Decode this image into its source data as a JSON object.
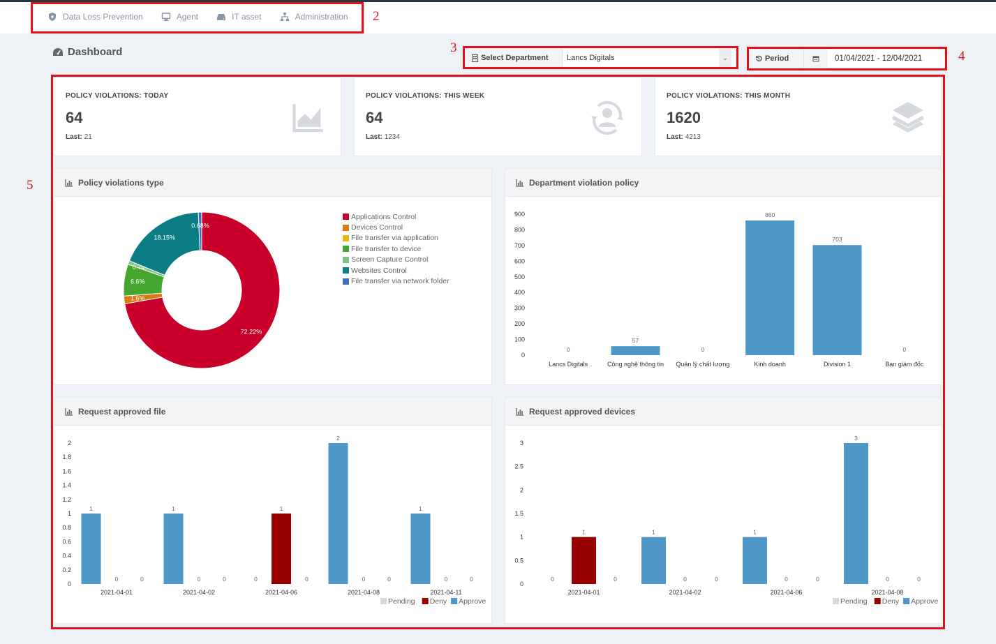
{
  "nav": [
    {
      "label": "Data Loss Prevention",
      "icon": "shield-icon"
    },
    {
      "label": "Agent",
      "icon": "monitor-icon"
    },
    {
      "label": "IT asset",
      "icon": "hdd-icon"
    },
    {
      "label": "Administration",
      "icon": "sitemap-icon"
    }
  ],
  "annotations": [
    "2",
    "3",
    "4",
    "5"
  ],
  "page": {
    "title": "Dashboard",
    "icon": "dashboard-icon"
  },
  "filters": {
    "department_label": "Select Department",
    "department_value": "Lancs Digitals",
    "period_label": "Period",
    "period_value": "01/04/2021 - 12/04/2021"
  },
  "stats": [
    {
      "title": "POLICY VIOLATIONS: TODAY",
      "value": "64",
      "last_label": "Last:",
      "last_value": "21",
      "icon": "line-chart-icon"
    },
    {
      "title": "POLICY VIOLATIONS: THIS WEEK",
      "value": "64",
      "last_label": "Last:",
      "last_value": "1234",
      "icon": "user-refresh-icon"
    },
    {
      "title": "POLICY VIOLATIONS: THIS MONTH",
      "value": "1620",
      "last_label": "Last:",
      "last_value": "4213",
      "icon": "layers-icon"
    }
  ],
  "panels": {
    "violations_type": "Policy violations type",
    "department": "Department violation policy",
    "approved_file": "Request approved file",
    "approved_devices": "Request approved devices"
  },
  "colors": {
    "accent_red": "#e0131b",
    "bar_blue": "#4f97c6",
    "deny_red": "#990000",
    "pending_grey": "#d7d7d7"
  },
  "chart_data": [
    {
      "type": "pie",
      "donut": true,
      "title": "Policy violations type",
      "legend_position": "right",
      "series": [
        {
          "name": "Applications Control",
          "percent": 72.22,
          "label": "72.22%",
          "color": "#c8002a"
        },
        {
          "name": "Devices Control",
          "percent": 1.6,
          "label": "1.6%",
          "color": "#d97b12"
        },
        {
          "name": "File transfer via application",
          "percent": 0,
          "label": "",
          "color": "#f0b60f"
        },
        {
          "name": "File transfer to device",
          "percent": 6.6,
          "label": "6.6%",
          "color": "#45a62f"
        },
        {
          "name": "Screen Capture Control",
          "percent": 0.74,
          "label": "0.74%",
          "color": "#7cc47f"
        },
        {
          "name": "Websites Control",
          "percent": 18.15,
          "label": "18.15%",
          "color": "#0b7d84"
        },
        {
          "name": "File transfer via network folder",
          "percent": 0.68,
          "label": "0.68%",
          "color": "#3c6bc8"
        }
      ]
    },
    {
      "type": "bar",
      "title": "Department violation policy",
      "categories": [
        "Lancs Digitals",
        "Công nghệ thông tin",
        "Quản lý chất lượng",
        "Kinh doanh",
        "Division 1",
        "Ban giám đốc"
      ],
      "values": [
        0,
        57,
        0,
        860,
        703,
        0
      ],
      "ylim": [
        0,
        900
      ],
      "yticks": [
        0,
        100,
        200,
        300,
        400,
        500,
        600,
        700,
        800,
        900
      ],
      "color": "#4f97c6"
    },
    {
      "type": "bar",
      "title": "Request approved file",
      "categories": [
        "2021-04-01",
        "2021-04-02",
        "2021-04-06",
        "2021-04-08",
        "2021-04-11"
      ],
      "ylim": [
        0,
        2
      ],
      "yticks": [
        "0",
        "0.2",
        "0.4",
        "0.6",
        "0.8",
        "1",
        "1.2",
        "1.4",
        "1.6",
        "1.8",
        "2"
      ],
      "legend_position": "bottom-right",
      "series": [
        {
          "name": "Pending",
          "values": [
            1,
            1,
            0,
            2,
            1
          ],
          "color": "#d7d7d7"
        },
        {
          "name": "Deny",
          "values": [
            0,
            0,
            1,
            0,
            0
          ],
          "color": "#990000"
        },
        {
          "name": "Approve",
          "values": [
            0,
            0,
            0,
            0,
            0
          ],
          "color": "#4f97c6"
        }
      ],
      "bar_colors": [
        [
          "#4f97c6",
          "#4f97c6",
          "#4f97c6"
        ],
        [
          "#4f97c6",
          "#4f97c6",
          "#4f97c6"
        ],
        [
          "#4f97c6",
          "#990000",
          "#4f97c6"
        ],
        [
          "#4f97c6",
          "#4f97c6",
          "#4f97c6"
        ],
        [
          "#4f97c6",
          "#4f97c6",
          "#4f97c6"
        ]
      ]
    },
    {
      "type": "bar",
      "title": "Request approved devices",
      "categories": [
        "2021-04-01",
        "2021-04-02",
        "2021-04-06",
        "2021-04-08"
      ],
      "ylim": [
        0,
        3
      ],
      "yticks": [
        "0",
        "0.5",
        "1",
        "1.5",
        "2",
        "2.5",
        "3"
      ],
      "legend_position": "bottom-right",
      "series": [
        {
          "name": "Pending",
          "values": [
            0,
            1,
            1,
            3
          ],
          "color": "#d7d7d7"
        },
        {
          "name": "Deny",
          "values": [
            1,
            0,
            0,
            0
          ],
          "color": "#990000"
        },
        {
          "name": "Approve",
          "values": [
            0,
            0,
            0,
            0
          ],
          "color": "#4f97c6"
        }
      ],
      "bar_colors": [
        [
          "#4f97c6",
          "#990000",
          "#4f97c6"
        ],
        [
          "#4f97c6",
          "#4f97c6",
          "#4f97c6"
        ],
        [
          "#4f97c6",
          "#4f97c6",
          "#4f97c6"
        ],
        [
          "#4f97c6",
          "#4f97c6",
          "#4f97c6"
        ]
      ]
    }
  ]
}
